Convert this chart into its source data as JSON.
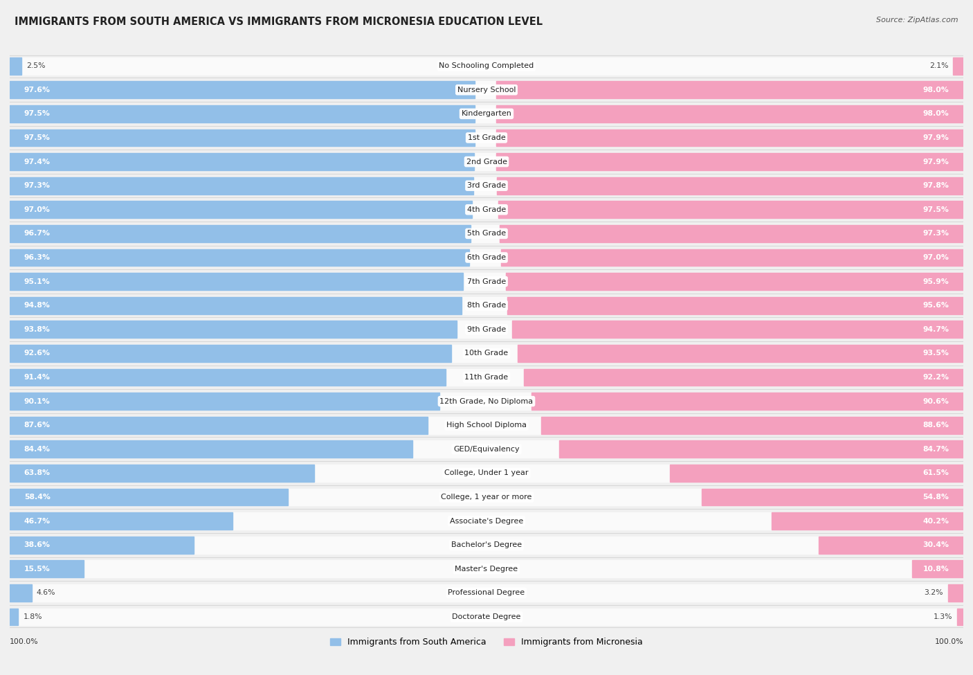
{
  "title": "IMMIGRANTS FROM SOUTH AMERICA VS IMMIGRANTS FROM MICRONESIA EDUCATION LEVEL",
  "source": "Source: ZipAtlas.com",
  "categories": [
    "No Schooling Completed",
    "Nursery School",
    "Kindergarten",
    "1st Grade",
    "2nd Grade",
    "3rd Grade",
    "4th Grade",
    "5th Grade",
    "6th Grade",
    "7th Grade",
    "8th Grade",
    "9th Grade",
    "10th Grade",
    "11th Grade",
    "12th Grade, No Diploma",
    "High School Diploma",
    "GED/Equivalency",
    "College, Under 1 year",
    "College, 1 year or more",
    "Associate's Degree",
    "Bachelor's Degree",
    "Master's Degree",
    "Professional Degree",
    "Doctorate Degree"
  ],
  "south_america": [
    2.5,
    97.6,
    97.5,
    97.5,
    97.4,
    97.3,
    97.0,
    96.7,
    96.3,
    95.1,
    94.8,
    93.8,
    92.6,
    91.4,
    90.1,
    87.6,
    84.4,
    63.8,
    58.4,
    46.7,
    38.6,
    15.5,
    4.6,
    1.8
  ],
  "micronesia": [
    2.1,
    98.0,
    98.0,
    97.9,
    97.9,
    97.8,
    97.5,
    97.3,
    97.0,
    95.9,
    95.6,
    94.7,
    93.5,
    92.2,
    90.6,
    88.6,
    84.7,
    61.5,
    54.8,
    40.2,
    30.4,
    10.8,
    3.2,
    1.3
  ],
  "color_south_america": "#92bfe8",
  "color_micronesia": "#f4a0be",
  "legend_south_america": "Immigrants from South America",
  "legend_micronesia": "Immigrants from Micronesia",
  "background_color": "#f0f0f0",
  "bar_background": "#fafafa",
  "row_sep_color": "#d8d8d8",
  "title_fontsize": 10.5,
  "label_fontsize": 8.0,
  "value_fontsize": 7.8,
  "legend_fontsize": 9,
  "source_fontsize": 8
}
